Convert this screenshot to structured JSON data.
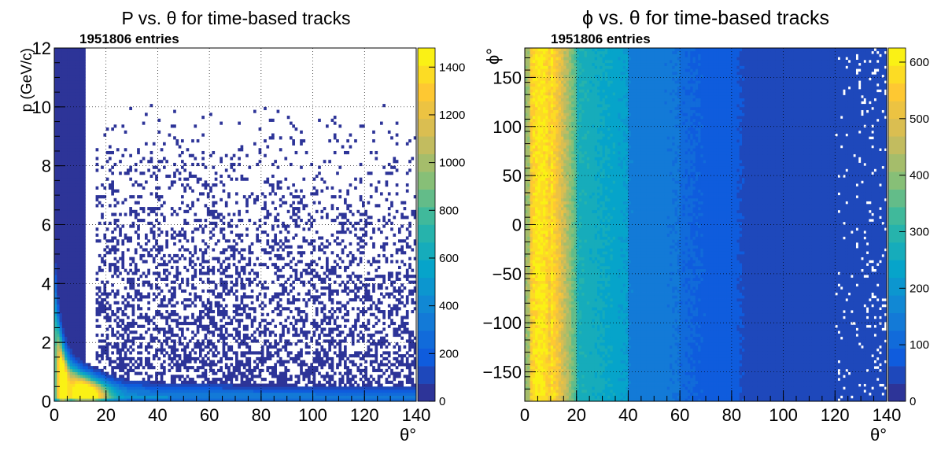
{
  "chart_data": [
    {
      "type": "heatmap",
      "title": "P vs. θ for time-based tracks",
      "entries_label": "1951806 entries",
      "xlabel": "θ°",
      "ylabel": "p (GeV/c)",
      "xlim": [
        0,
        140
      ],
      "ylim": [
        0,
        12
      ],
      "x_ticks": [
        0,
        20,
        40,
        60,
        80,
        100,
        120,
        140
      ],
      "y_ticks": [
        0,
        2,
        4,
        6,
        8,
        10,
        12
      ],
      "z_range": [
        0,
        1480
      ],
      "z_ticks": [
        0,
        200,
        400,
        600,
        800,
        1000,
        1200,
        1400
      ],
      "grid": true,
      "colormap": "kBird (ROOT)",
      "density_description": "counts concentrated at low momentum; ridge p ≈ 4.5/(θ+2) with peak near θ≈10°, p≈0.4 GeV/c; sparse tail above the ridge"
    },
    {
      "type": "heatmap",
      "title": "ϕ vs. θ for time-based tracks",
      "entries_label": "1951806 entries",
      "xlabel": "θ°",
      "ylabel": "ϕ°",
      "xlim": [
        0,
        140
      ],
      "ylim": [
        -180,
        180
      ],
      "x_ticks": [
        0,
        20,
        40,
        60,
        80,
        100,
        120,
        140
      ],
      "y_ticks": [
        -150,
        -100,
        -50,
        0,
        50,
        100,
        150
      ],
      "z_range": [
        0,
        625
      ],
      "z_ticks": [
        0,
        100,
        200,
        300,
        400,
        500,
        600
      ],
      "grid": true,
      "colormap": "kBird (ROOT)",
      "density_description": "uniform in ϕ; counts ≈ 600 at θ 2–10°, falling to ≈ 270 at θ 20–40°, ≈ 130 at 40–60°, ≈ 75 at 60–80°, ≈ 40 beyond 90°"
    }
  ],
  "colors": {
    "palette": [
      "#352a87",
      "#0f5cdd",
      "#1481d6",
      "#06a4ca",
      "#2eb7a4",
      "#87bf77",
      "#d1bb59",
      "#fec832",
      "#f9fb0e"
    ],
    "axis": "#000000",
    "background": "#ffffff"
  }
}
